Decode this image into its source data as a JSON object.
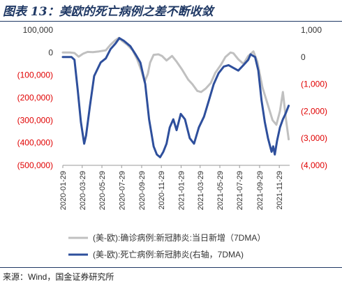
{
  "title": "图表 13：美欧的死亡病例之差不断收敛",
  "source": "来源：Wind，国金证券研究所",
  "colors": {
    "negative": "#e00000",
    "positive": "#333333",
    "series_confirmed": "#c0c0c0",
    "series_deaths": "#2e4f9c",
    "title": "#1f3864"
  },
  "chart_data": {
    "type": "line",
    "title": "",
    "left_axis": {
      "ylim": [
        -500000,
        100000
      ],
      "ticks": [
        100000,
        0,
        -100000,
        -200000,
        -300000,
        -400000,
        -500000
      ],
      "tick_labels": [
        "100,000",
        "0",
        "(100,000)",
        "(200,000)",
        "(300,000)",
        "(400,000)",
        "(500,000)"
      ]
    },
    "right_axis": {
      "ylim": [
        -4000,
        1000
      ],
      "ticks": [
        1000,
        0,
        -1000,
        -2000,
        -3000,
        -4000
      ],
      "tick_labels": [
        "1,000",
        "0",
        "(1,000)",
        "(2,000)",
        "(3,000)",
        "(4,000)"
      ]
    },
    "x_axis": {
      "start": "2020-01-29",
      "end": "2021-12-31",
      "tick_labels": [
        "2020-01-29",
        "2020-03-29",
        "2020-05-29",
        "2020-07-29",
        "2020-09-29",
        "2020-11-29",
        "2021-01-29",
        "2021-03-29",
        "2021-05-29",
        "2021-07-29",
        "2021-09-29",
        "2021-11-29"
      ]
    },
    "legend": {
      "placement": "bottom"
    },
    "series": [
      {
        "name": "(美-欧):确诊病例:新冠肺炎:当日新增（7DMA）",
        "axis": "left",
        "points": [
          [
            "2020-01-29",
            0
          ],
          [
            "2020-02-20",
            0
          ],
          [
            "2020-03-05",
            -2000
          ],
          [
            "2020-03-18",
            -18000
          ],
          [
            "2020-04-01",
            -5000
          ],
          [
            "2020-04-15",
            3000
          ],
          [
            "2020-05-01",
            2000
          ],
          [
            "2020-05-20",
            5000
          ],
          [
            "2020-06-10",
            10000
          ],
          [
            "2020-06-25",
            35000
          ],
          [
            "2020-07-10",
            55000
          ],
          [
            "2020-07-20",
            65000
          ],
          [
            "2020-08-01",
            50000
          ],
          [
            "2020-08-15",
            35000
          ],
          [
            "2020-09-01",
            10000
          ],
          [
            "2020-09-15",
            -30000
          ],
          [
            "2020-09-28",
            -80000
          ],
          [
            "2020-10-08",
            -130000
          ],
          [
            "2020-10-18",
            -95000
          ],
          [
            "2020-10-25",
            -45000
          ],
          [
            "2020-11-05",
            -10000
          ],
          [
            "2020-11-20",
            -8000
          ],
          [
            "2020-12-01",
            -15000
          ],
          [
            "2020-12-15",
            -35000
          ],
          [
            "2021-01-01",
            -15000
          ],
          [
            "2021-01-15",
            -40000
          ],
          [
            "2021-02-01",
            -75000
          ],
          [
            "2021-02-20",
            -120000
          ],
          [
            "2021-03-05",
            -140000
          ],
          [
            "2021-03-20",
            -170000
          ],
          [
            "2021-04-01",
            -175000
          ],
          [
            "2021-04-15",
            -160000
          ],
          [
            "2021-05-01",
            -135000
          ],
          [
            "2021-05-15",
            -90000
          ],
          [
            "2021-06-01",
            -55000
          ],
          [
            "2021-06-15",
            -20000
          ],
          [
            "2021-07-01",
            0
          ],
          [
            "2021-07-10",
            -3000
          ],
          [
            "2021-07-25",
            -30000
          ],
          [
            "2021-08-10",
            -50000
          ],
          [
            "2021-08-25",
            -15000
          ],
          [
            "2021-09-10",
            5000
          ],
          [
            "2021-09-22",
            -40000
          ],
          [
            "2021-10-08",
            -155000
          ],
          [
            "2021-10-22",
            -220000
          ],
          [
            "2021-11-08",
            -300000
          ],
          [
            "2021-11-20",
            -320000
          ],
          [
            "2021-12-01",
            -260000
          ],
          [
            "2021-12-10",
            -175000
          ],
          [
            "2021-12-20",
            -300000
          ],
          [
            "2021-12-28",
            -385000
          ]
        ]
      },
      {
        "name": "(美-欧):死亡病例:新冠肺炎(右轴，7DMA)",
        "axis": "right",
        "points": [
          [
            "2020-01-29",
            0
          ],
          [
            "2020-02-25",
            0
          ],
          [
            "2020-03-05",
            -100
          ],
          [
            "2020-03-15",
            -1200
          ],
          [
            "2020-03-25",
            -2400
          ],
          [
            "2020-04-04",
            -3200
          ],
          [
            "2020-04-10",
            -2900
          ],
          [
            "2020-04-22",
            -1800
          ],
          [
            "2020-05-05",
            -700
          ],
          [
            "2020-05-25",
            -200
          ],
          [
            "2020-06-10",
            -50
          ],
          [
            "2020-06-25",
            300
          ],
          [
            "2020-07-10",
            500
          ],
          [
            "2020-07-22",
            700
          ],
          [
            "2020-08-05",
            600
          ],
          [
            "2020-08-25",
            400
          ],
          [
            "2020-09-10",
            100
          ],
          [
            "2020-09-25",
            -200
          ],
          [
            "2020-10-10",
            -1000
          ],
          [
            "2020-10-22",
            -2300
          ],
          [
            "2020-11-05",
            -3300
          ],
          [
            "2020-11-15",
            -3600
          ],
          [
            "2020-11-25",
            -3700
          ],
          [
            "2020-12-05",
            -3500
          ],
          [
            "2020-12-15",
            -3200
          ],
          [
            "2020-12-25",
            -2600
          ],
          [
            "2021-01-05",
            -2300
          ],
          [
            "2021-01-15",
            -2700
          ],
          [
            "2021-01-28",
            -2100
          ],
          [
            "2021-02-10",
            -2300
          ],
          [
            "2021-02-25",
            -3000
          ],
          [
            "2021-03-10",
            -3200
          ],
          [
            "2021-03-25",
            -2600
          ],
          [
            "2021-04-10",
            -2200
          ],
          [
            "2021-04-25",
            -1600
          ],
          [
            "2021-05-10",
            -1000
          ],
          [
            "2021-05-25",
            -600
          ],
          [
            "2021-06-10",
            -350
          ],
          [
            "2021-06-25",
            -300
          ],
          [
            "2021-07-10",
            -400
          ],
          [
            "2021-07-25",
            -500
          ],
          [
            "2021-08-10",
            -300
          ],
          [
            "2021-08-25",
            -100
          ],
          [
            "2021-09-01",
            100
          ],
          [
            "2021-09-15",
            0
          ],
          [
            "2021-09-25",
            -500
          ],
          [
            "2021-10-05",
            -1600
          ],
          [
            "2021-10-15",
            -2400
          ],
          [
            "2021-10-25",
            -3000
          ],
          [
            "2021-11-05",
            -3500
          ],
          [
            "2021-11-10",
            -3300
          ],
          [
            "2021-11-15",
            -3600
          ],
          [
            "2021-11-22",
            -3100
          ],
          [
            "2021-12-01",
            -2600
          ],
          [
            "2021-12-10",
            -2300
          ],
          [
            "2021-12-18",
            -2100
          ],
          [
            "2021-12-28",
            -1800
          ]
        ]
      }
    ]
  }
}
